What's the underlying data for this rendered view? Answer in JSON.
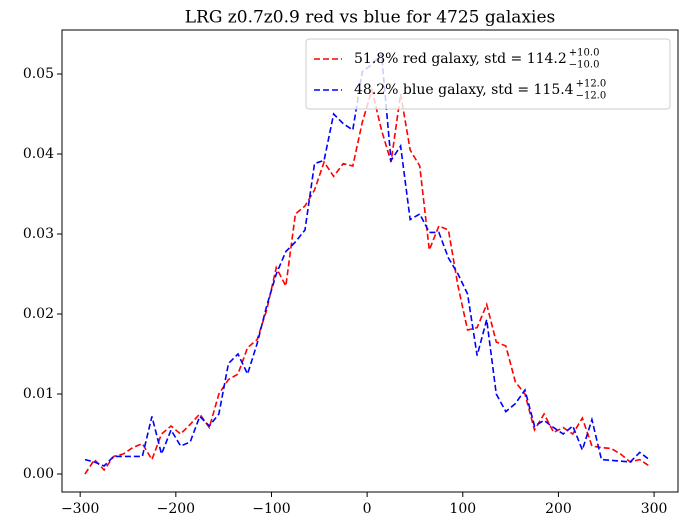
{
  "chart_data": {
    "type": "line",
    "title": "LRG z0.7z0.9 red vs blue for 4725 galaxies",
    "x": [
      -295,
      -285,
      -275,
      -265,
      -255,
      -245,
      -235,
      -225,
      -215,
      -205,
      -195,
      -185,
      -175,
      -165,
      -155,
      -145,
      -135,
      -125,
      -115,
      -105,
      -95,
      -85,
      -75,
      -65,
      -55,
      -45,
      -35,
      -25,
      -15,
      -5,
      5,
      15,
      25,
      35,
      45,
      55,
      65,
      75,
      85,
      95,
      105,
      115,
      125,
      135,
      145,
      155,
      165,
      175,
      185,
      195,
      205,
      215,
      225,
      235,
      245,
      255,
      265,
      275,
      285,
      295
    ],
    "series": [
      {
        "name": "51.8% red galaxy, std = 114.2",
        "err_plus": "+10.0",
        "err_minus": "−10.0",
        "color": "#ff0000",
        "dash": true,
        "values": [
          0.0,
          0.0018,
          0.0005,
          0.0022,
          0.0025,
          0.0033,
          0.0038,
          0.0018,
          0.005,
          0.006,
          0.005,
          0.0062,
          0.0075,
          0.0058,
          0.01,
          0.0118,
          0.0125,
          0.0158,
          0.0168,
          0.0205,
          0.0258,
          0.0235,
          0.0325,
          0.0335,
          0.0355,
          0.039,
          0.0372,
          0.0388,
          0.0385,
          0.044,
          0.048,
          0.043,
          0.039,
          0.0475,
          0.0405,
          0.0385,
          0.028,
          0.031,
          0.0305,
          0.0235,
          0.018,
          0.0183,
          0.0212,
          0.0165,
          0.016,
          0.0115,
          0.01,
          0.0055,
          0.0075,
          0.0052,
          0.0058,
          0.005,
          0.007,
          0.0035,
          0.0033,
          0.0032,
          0.0025,
          0.0015,
          0.0018,
          0.001
        ]
      },
      {
        "name": "48.2% blue galaxy, std = 115.4",
        "err_plus": "+12.0",
        "err_minus": "−12.0",
        "color": "#0000ff",
        "dash": true,
        "values": [
          0.0018,
          0.0015,
          0.001,
          0.0022,
          0.0022,
          0.0022,
          0.0022,
          0.0072,
          0.0025,
          0.0055,
          0.0035,
          0.004,
          0.0072,
          0.006,
          0.0075,
          0.0138,
          0.015,
          0.0125,
          0.0163,
          0.021,
          0.025,
          0.0278,
          0.029,
          0.0305,
          0.0388,
          0.0392,
          0.045,
          0.0438,
          0.043,
          0.0503,
          0.0512,
          0.0525,
          0.0392,
          0.041,
          0.0318,
          0.0325,
          0.0302,
          0.0302,
          0.027,
          0.025,
          0.0225,
          0.0148,
          0.0193,
          0.01,
          0.0078,
          0.0088,
          0.0105,
          0.006,
          0.0067,
          0.0058,
          0.005,
          0.006,
          0.003,
          0.0068,
          0.0018,
          0.0017,
          0.0016,
          0.0015,
          0.0027,
          0.0018
        ]
      }
    ],
    "xlim": [
      -319,
      325
    ],
    "ylim": [
      -0.00225,
      0.0555
    ],
    "xticks": [
      {
        "value": -300,
        "label": "−300"
      },
      {
        "value": -200,
        "label": "−200"
      },
      {
        "value": -100,
        "label": "−100"
      },
      0,
      100,
      200,
      300
    ],
    "yticks": [
      {
        "value": 0,
        "label": "0.00"
      },
      {
        "value": 0.01,
        "label": "0.01"
      },
      {
        "value": 0.02,
        "label": "0.02"
      },
      {
        "value": 0.03,
        "label": "0.03"
      },
      {
        "value": 0.04,
        "label": "0.04"
      },
      {
        "value": 0.05,
        "label": "0.05"
      }
    ],
    "legend": "upper right"
  }
}
